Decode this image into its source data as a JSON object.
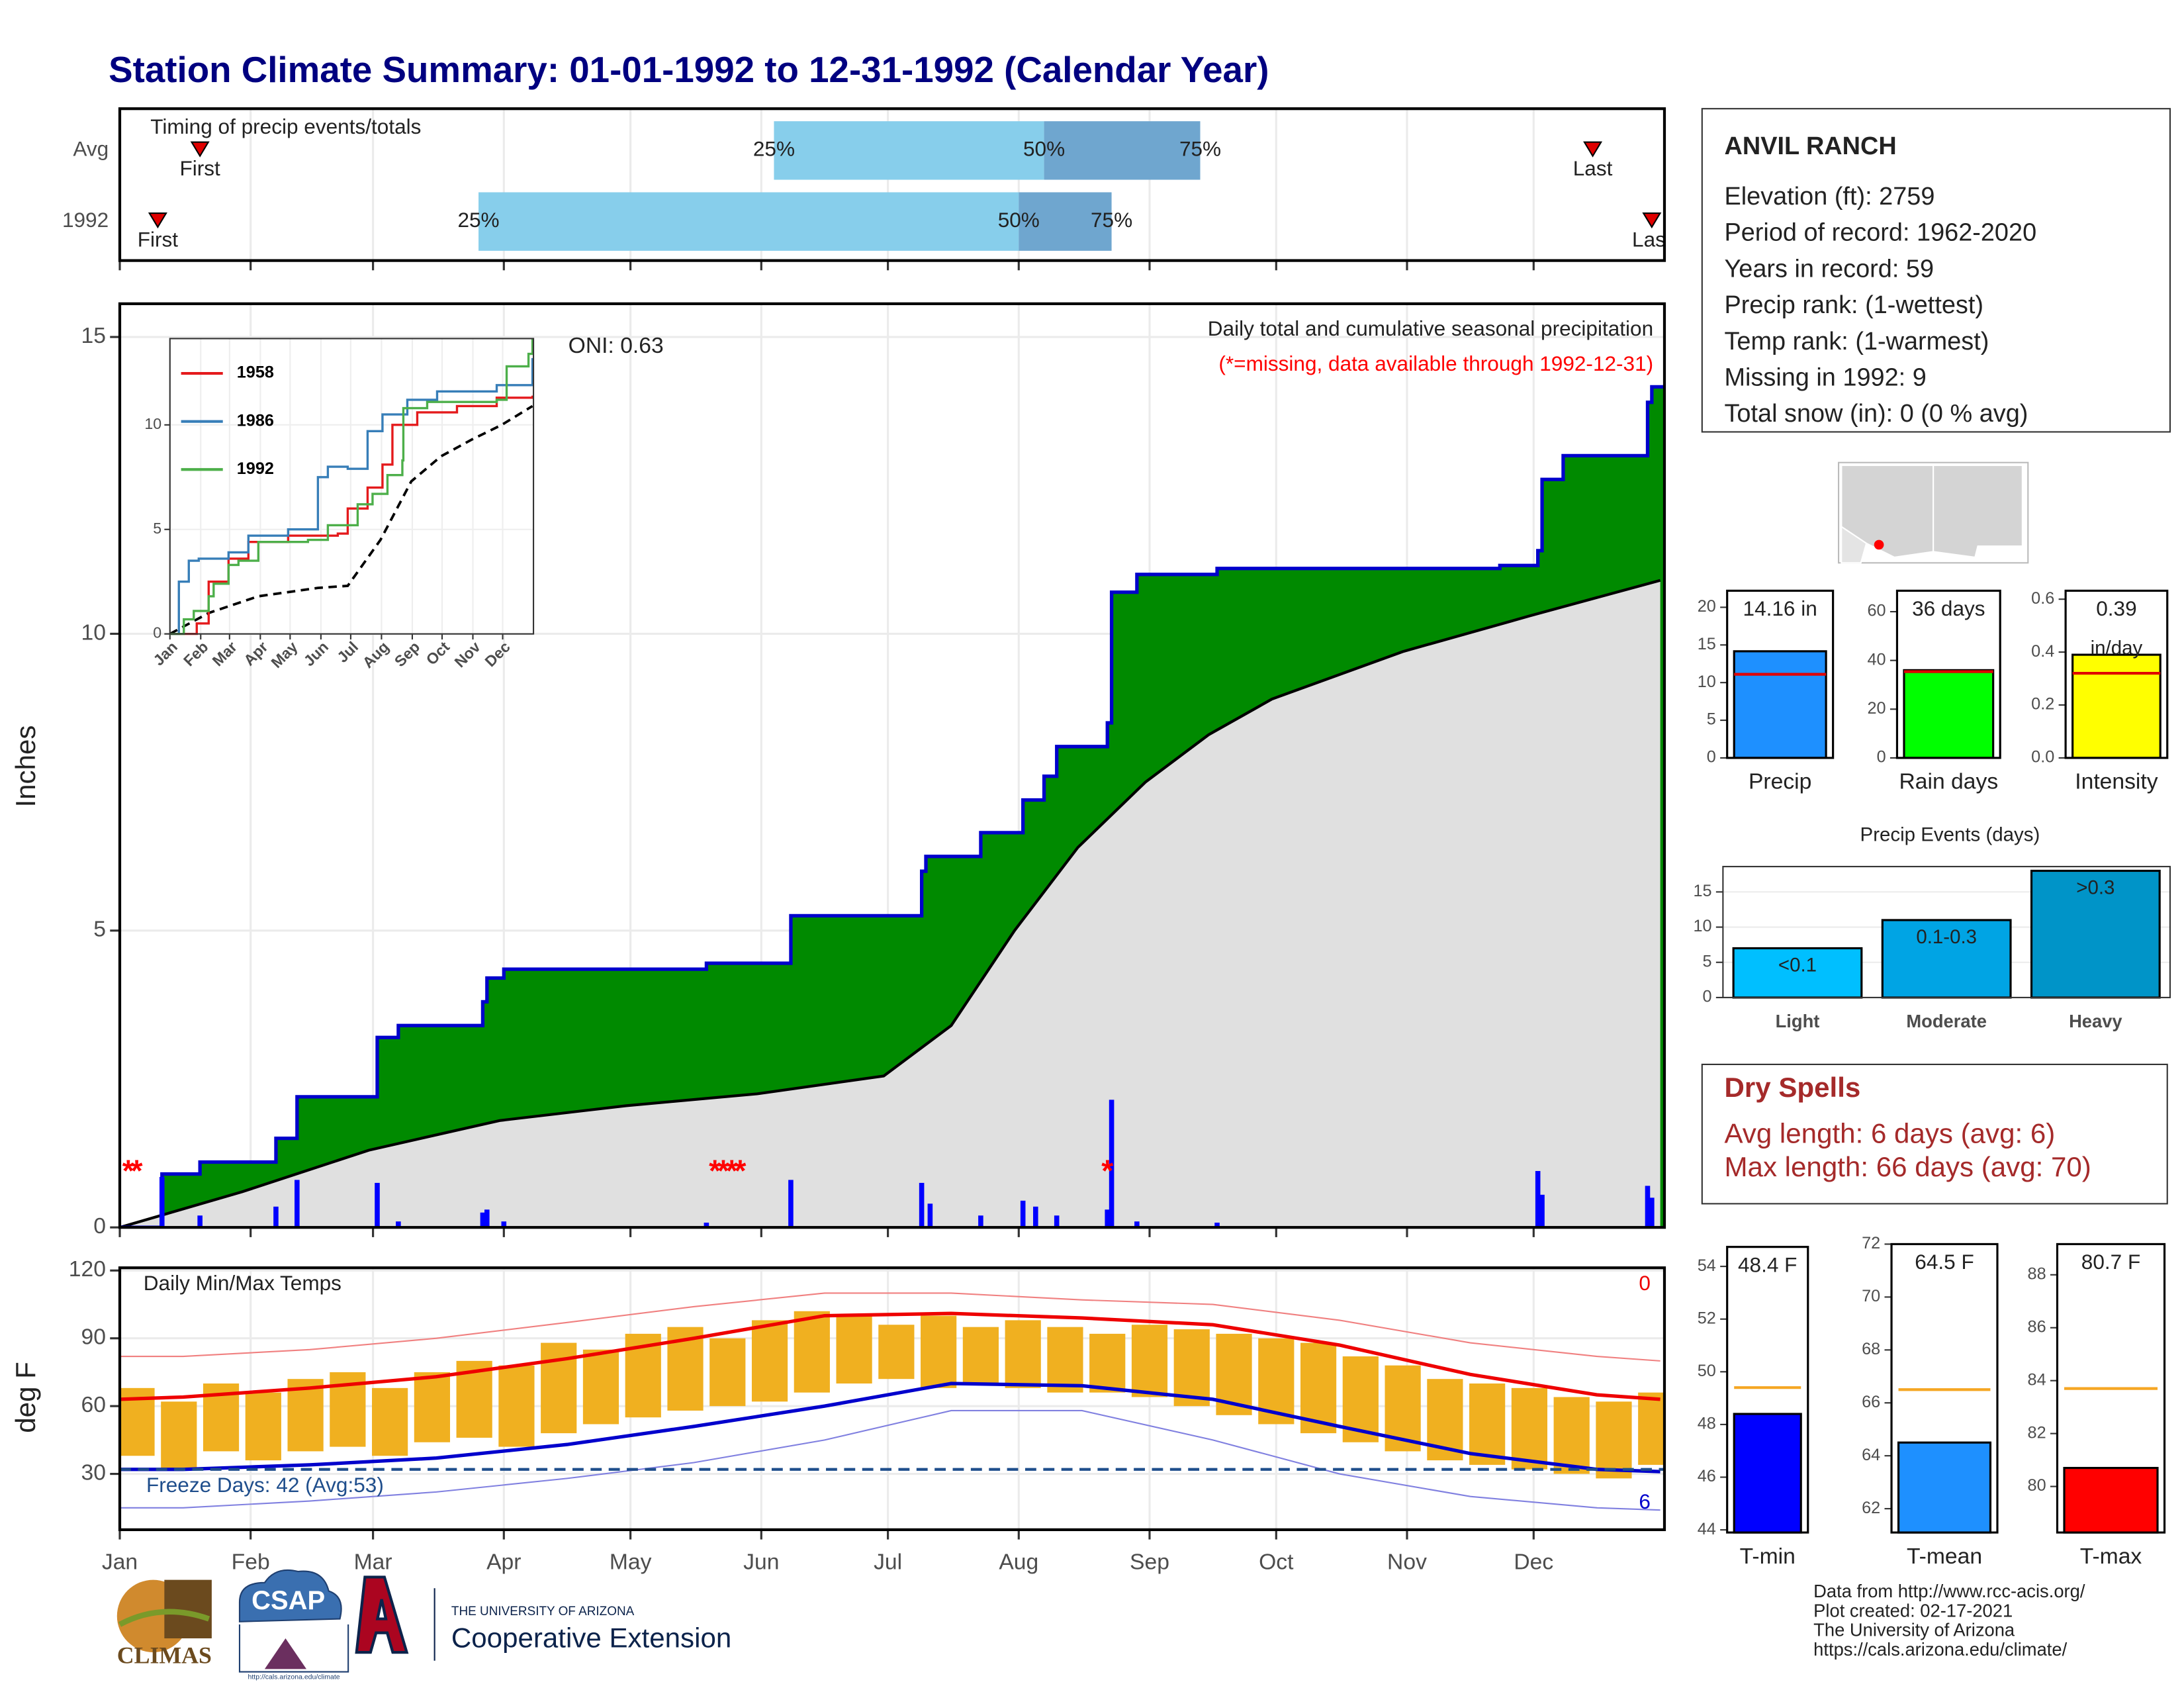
{
  "title": "Station Climate Summary: 01-01-1992 to 12-31-1992 (Calendar Year)",
  "chart_data": [
    {
      "type": "timing",
      "title": "Timing of precip events/totals",
      "categories": [
        "Avg",
        "1992"
      ],
      "labels": {
        "first": "First",
        "last": "Last",
        "q25": "25%",
        "q50": "50%",
        "q75": "75%"
      },
      "first": [
        20,
        10
      ],
      "q25": [
        156,
        86
      ],
      "q50": [
        220,
        214
      ],
      "q75": [
        257,
        236
      ],
      "last": [
        350,
        364
      ],
      "colors": [
        "#87ceeb",
        "#6fa6cf"
      ],
      "grid": true
    },
    {
      "type": "step",
      "title": "Daily total and cumulative seasonal precipitation",
      "subtitle": "(*=missing, data available through 1992-12-31)",
      "annotation": "ONI: 0.63",
      "ylabel": "Inches",
      "ylim": [
        0,
        15.56
      ],
      "yticks": [
        0,
        5,
        10,
        15
      ],
      "grid": true,
      "cumulative": {
        "color": "#008a00",
        "line_color": "#0000cc",
        "x": [
          1,
          11,
          20,
          38,
          43,
          62,
          67,
          87,
          88,
          92,
          140,
          160,
          191,
          192,
          205,
          215,
          220,
          223,
          235,
          236,
          242,
          261,
          328,
          337,
          338,
          343,
          363,
          364
        ],
        "values": [
          0,
          0.9,
          1.1,
          1.5,
          2.2,
          3.2,
          3.4,
          3.8,
          4.2,
          4.35,
          4.45,
          5.25,
          6.0,
          6.25,
          6.65,
          7.2,
          7.6,
          8.1,
          8.5,
          10.7,
          11.0,
          11.1,
          11.15,
          11.4,
          12.6,
          13.0,
          13.9,
          14.16
        ]
      },
      "average": {
        "color": "#e0e0e0",
        "x": [
          1,
          30,
          60,
          91,
          121,
          152,
          182,
          198,
          213,
          228,
          244,
          259,
          274,
          305,
          335,
          366
        ],
        "values": [
          0,
          0.6,
          1.3,
          1.8,
          2.05,
          2.25,
          2.55,
          3.4,
          5.0,
          6.4,
          7.5,
          8.3,
          8.9,
          9.7,
          10.3,
          10.9
        ]
      },
      "daily": {
        "color": "#0000ff",
        "x": [
          11,
          20,
          38,
          43,
          62,
          67,
          87,
          88,
          92,
          140,
          160,
          191,
          193,
          205,
          215,
          218,
          223,
          235,
          236,
          242,
          261,
          337,
          338,
          363,
          364
        ],
        "values": [
          0.85,
          0.2,
          0.35,
          0.8,
          0.75,
          0.1,
          0.25,
          0.3,
          0.1,
          0.08,
          0.8,
          0.75,
          0.4,
          0.2,
          0.45,
          0.35,
          0.2,
          0.3,
          2.15,
          0.1,
          0.08,
          0.95,
          0.55,
          0.7,
          0.5
        ]
      },
      "missing": {
        "label": "*",
        "color": "#ff0000",
        "x": [
          3,
          5,
          142,
          144,
          146,
          148,
          235
        ]
      }
    },
    {
      "type": "line",
      "ylim": [
        0,
        14.13
      ],
      "yticks": [
        0,
        5,
        10
      ],
      "xticks": [
        {
          "value": 1,
          "label": "Jan"
        },
        {
          "value": 32,
          "label": "Feb"
        },
        {
          "value": 61,
          "label": "Mar"
        },
        {
          "value": 92,
          "label": "Apr"
        },
        {
          "value": 122,
          "label": "May"
        },
        {
          "value": 153,
          "label": "Jun"
        },
        {
          "value": 183,
          "label": "Jul"
        },
        {
          "value": 214,
          "label": "Aug"
        },
        {
          "value": 245,
          "label": "Sep"
        },
        {
          "value": 275,
          "label": "Oct"
        },
        {
          "value": 306,
          "label": "Nov"
        },
        {
          "value": 336,
          "label": "Dec"
        }
      ],
      "series": [
        {
          "name": "1958",
          "color": "#e41a1c",
          "x": [
            1,
            25,
            28,
            40,
            60,
            80,
            120,
            170,
            180,
            200,
            215,
            225,
            250,
            290,
            330,
            366
          ],
          "values": [
            0,
            0,
            0.5,
            2.5,
            3.6,
            4.4,
            4.7,
            4.8,
            6.0,
            7.0,
            8.1,
            10.0,
            10.6,
            10.9,
            11.3,
            11.4
          ]
        },
        {
          "name": "1986",
          "color": "#377eb8",
          "x": [
            1,
            10,
            20,
            30,
            60,
            80,
            120,
            150,
            160,
            180,
            200,
            215,
            240,
            270,
            330,
            366
          ],
          "values": [
            0,
            2.5,
            3.5,
            3.6,
            3.9,
            4.7,
            5.0,
            7.5,
            8.0,
            7.9,
            9.7,
            10.5,
            11.2,
            11.6,
            11.9,
            13.2
          ]
        },
        {
          "name": "1992",
          "color": "#4daf4a",
          "x": [
            1,
            15,
            25,
            40,
            45,
            60,
            70,
            90,
            140,
            160,
            190,
            205,
            220,
            235,
            236,
            260,
            330,
            340,
            362,
            366
          ],
          "values": [
            0,
            0.7,
            1.1,
            1.8,
            2.4,
            3.3,
            3.5,
            4.4,
            4.5,
            5.2,
            6.2,
            6.7,
            7.6,
            8.3,
            10.8,
            11.1,
            11.2,
            12.8,
            13.4,
            14.1
          ]
        }
      ],
      "average": {
        "color": "#000000",
        "x": [
          1,
          40,
          90,
          150,
          180,
          213,
          244,
          274,
          305,
          335,
          366
        ],
        "values": [
          0,
          1.0,
          1.8,
          2.2,
          2.3,
          4.5,
          7.3,
          8.5,
          9.3,
          10.0,
          10.9
        ]
      }
    },
    {
      "type": "range",
      "title": "Daily Min/Max Temps",
      "annotation": "Freeze Days: 42 (Avg:53)",
      "ylabel": "deg F",
      "ylim": [
        5.3,
        121.2
      ],
      "yticks": [
        30,
        60,
        90,
        120
      ],
      "grid": true,
      "xlim": [
        1,
        367
      ],
      "xticks": [
        {
          "value": 1,
          "label": "Jan"
        },
        {
          "value": 32,
          "label": "Feb"
        },
        {
          "value": 61,
          "label": "Mar"
        },
        {
          "value": 92,
          "label": "Apr"
        },
        {
          "value": 122,
          "label": "May"
        },
        {
          "value": 153,
          "label": "Jun"
        },
        {
          "value": 183,
          "label": "Jul"
        },
        {
          "value": 214,
          "label": "Aug"
        },
        {
          "value": 245,
          "label": "Sep"
        },
        {
          "value": 275,
          "label": "Oct"
        },
        {
          "value": 306,
          "label": "Nov"
        },
        {
          "value": 336,
          "label": "Dec"
        }
      ],
      "daily": {
        "color": "#f0b020",
        "x": [
          5,
          15,
          25,
          35,
          45,
          55,
          65,
          75,
          85,
          95,
          105,
          115,
          125,
          135,
          145,
          155,
          165,
          175,
          185,
          195,
          205,
          215,
          225,
          235,
          245,
          255,
          265,
          275,
          285,
          295,
          305,
          315,
          325,
          335,
          345,
          355,
          365
        ],
        "highs": [
          68,
          62,
          70,
          66,
          72,
          75,
          68,
          75,
          80,
          78,
          88,
          85,
          92,
          95,
          90,
          98,
          102,
          100,
          96,
          100,
          95,
          98,
          95,
          92,
          96,
          94,
          92,
          90,
          88,
          82,
          78,
          72,
          70,
          68,
          64,
          62,
          66
        ],
        "lows": [
          38,
          32,
          40,
          36,
          40,
          42,
          38,
          44,
          46,
          42,
          48,
          52,
          55,
          58,
          60,
          62,
          66,
          70,
          72,
          68,
          70,
          68,
          66,
          66,
          64,
          60,
          56,
          52,
          48,
          44,
          40,
          36,
          34,
          32,
          30,
          28,
          34
        ]
      },
      "normals_x": [
        1,
        16,
        46,
        76,
        107,
        137,
        168,
        198,
        229,
        260,
        290,
        321,
        351,
        366
      ],
      "normal_max": {
        "color": "#ee0000",
        "values": [
          63,
          64,
          68,
          73,
          81,
          90,
          100,
          101,
          99,
          96,
          87,
          74,
          65,
          63
        ]
      },
      "normal_min": {
        "color": "#0000cc",
        "values": [
          32,
          32,
          34,
          37,
          43,
          51,
          60,
          70,
          69,
          63,
          51,
          39,
          32,
          31
        ]
      },
      "record_max": {
        "color": "#f08080",
        "values": [
          82,
          82,
          85,
          90,
          97,
          104,
          110,
          110,
          107,
          105,
          98,
          88,
          82,
          80
        ]
      },
      "record_min": {
        "color": "#8080e0",
        "values": [
          15,
          15,
          18,
          22,
          28,
          35,
          45,
          58,
          58,
          45,
          30,
          20,
          15,
          14
        ]
      },
      "freeze_line": 32,
      "corner_labels": {
        "top": 0,
        "top_color": "#ee0000",
        "bottom": 6,
        "bottom_color": "#0000cc"
      }
    },
    {
      "type": "summary",
      "categories": [
        "Precip"
      ],
      "values": [
        14.16
      ],
      "value_labels": [
        "14.16 in"
      ],
      "average": 11.1,
      "ylim": [
        0,
        22.2
      ],
      "yticks": [
        0,
        5,
        10,
        15,
        20
      ],
      "color": "#1e90ff",
      "average_color": "#e00000"
    },
    {
      "type": "summary",
      "categories": [
        "Rain days"
      ],
      "values": [
        36
      ],
      "value_labels": [
        "36 days"
      ],
      "average": 35.4,
      "ylim": [
        0,
        68.6
      ],
      "yticks": [
        0,
        20,
        40,
        60
      ],
      "color": "#00ff00",
      "average_color": "#e00000"
    },
    {
      "type": "summary",
      "categories": [
        "Intensity"
      ],
      "values": [
        0.39
      ],
      "value_labels": [
        "0.39"
      ],
      "unit": "in/day",
      "average": 0.32,
      "ylim": [
        0,
        0.632
      ],
      "yticks": [
        {
          "value": 0,
          "label": "0.0"
        },
        0.2,
        0.4,
        0.6
      ],
      "color": "#ffff00",
      "average_color": "#e00000"
    },
    {
      "type": "bar",
      "title": "Precip Events (days)",
      "categories": [
        "Light",
        "Moderate",
        "Heavy"
      ],
      "bar_labels": [
        "<0.1",
        "0.1-0.3",
        ">0.3"
      ],
      "values": [
        7,
        11,
        18
      ],
      "ylim": [
        0,
        18.6
      ],
      "yticks": [
        0,
        5,
        10,
        15
      ],
      "colors": [
        "#00bfff",
        "#00a4e4",
        "#0094c8"
      ]
    },
    {
      "type": "summary",
      "categories": [
        "T-min"
      ],
      "values": [
        48.4
      ],
      "value_labels": [
        "48.4 F"
      ],
      "average": 49.4,
      "ylim": [
        43.9,
        54.74
      ],
      "yticks": [
        44,
        46,
        48,
        50,
        52,
        54
      ],
      "color": "#0000ff",
      "average_color": "#f5a623"
    },
    {
      "type": "summary",
      "categories": [
        "T-mean"
      ],
      "values": [
        64.5
      ],
      "value_labels": [
        "64.5 F"
      ],
      "average": 66.5,
      "ylim": [
        61.1,
        72.0
      ],
      "yticks": [
        62,
        64,
        66,
        68,
        70,
        72
      ],
      "color": "#1e90ff",
      "average_color": "#f5a623"
    },
    {
      "type": "summary",
      "categories": [
        "T-max"
      ],
      "values": [
        80.7
      ],
      "value_labels": [
        "80.7 F"
      ],
      "average": 83.7,
      "ylim": [
        78.26,
        89.16
      ],
      "yticks": [
        80,
        82,
        84,
        86,
        88
      ],
      "color": "#ff0000",
      "average_color": "#f5a623"
    }
  ],
  "station": {
    "name": "ANVIL RANCH",
    "lines": [
      "Elevation (ft): 2759",
      "Period of record: 1962-2020",
      "Years in record: 59",
      "Precip rank:  (1-wettest)",
      "Temp rank:  (1-warmest)",
      "Missing in 1992: 9",
      "Total snow (in): 0 (0 % avg)"
    ]
  },
  "dry_spells": {
    "title": "Dry Spells",
    "lines": [
      "Avg length: 6 days (avg: 6)",
      "Max length: 66 days (avg: 70)"
    ]
  },
  "logos": {
    "climas": "CLIMAS",
    "csap": "CSAP",
    "csap_url": "http://cals.arizona.edu/climate",
    "university": "THE UNIVERSITY OF ARIZONA",
    "extension": "Cooperative Extension"
  },
  "footer": [
    "Data from http://www.rcc-acis.org/",
    "Plot created: 02-17-2021",
    "The University of Arizona",
    "https://cals.arizona.edu/climate/"
  ]
}
